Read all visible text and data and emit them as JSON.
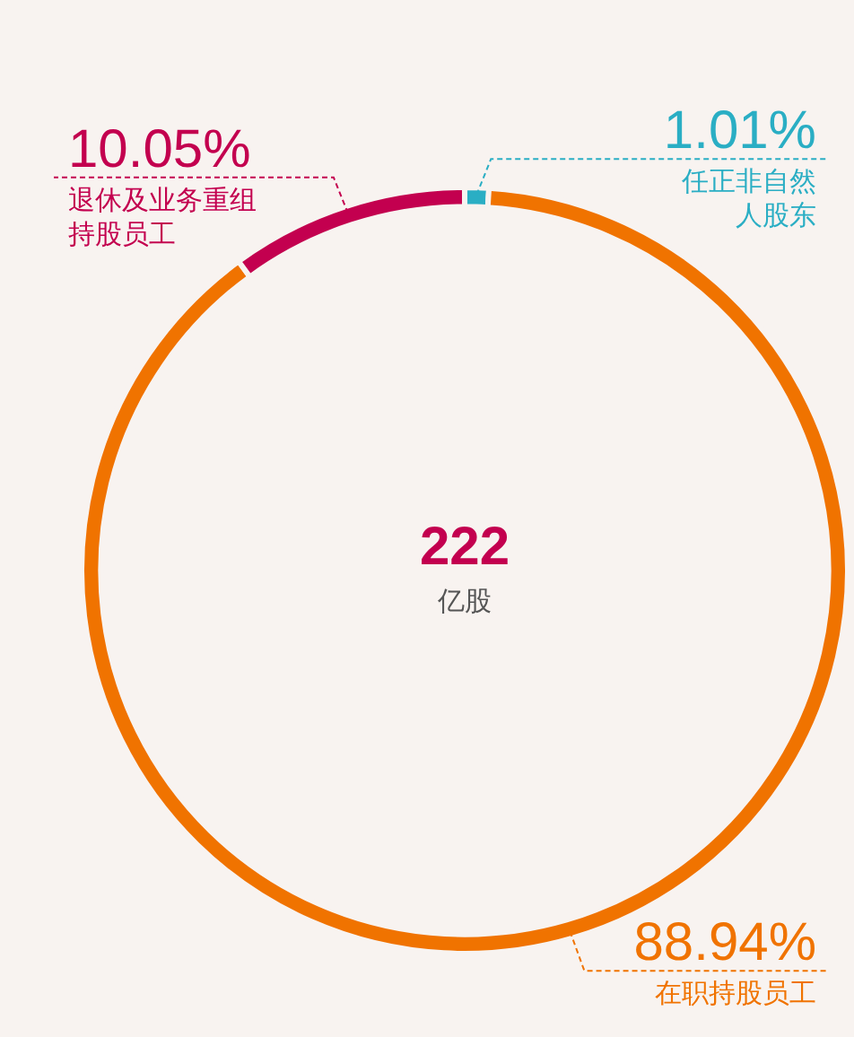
{
  "chart_data": {
    "type": "donut",
    "categories": [
      "任正非自然人股东",
      "在职持股员工",
      "退休及业务重组持股员工"
    ],
    "values": [
      1.01,
      88.94,
      10.05
    ],
    "colors": [
      "#2aaec4",
      "#f07300",
      "#c3004f"
    ],
    "value_labels": [
      "1.01%",
      "88.94%",
      "10.05%"
    ],
    "annotations": [
      "222",
      "亿股"
    ],
    "legend": false
  }
}
